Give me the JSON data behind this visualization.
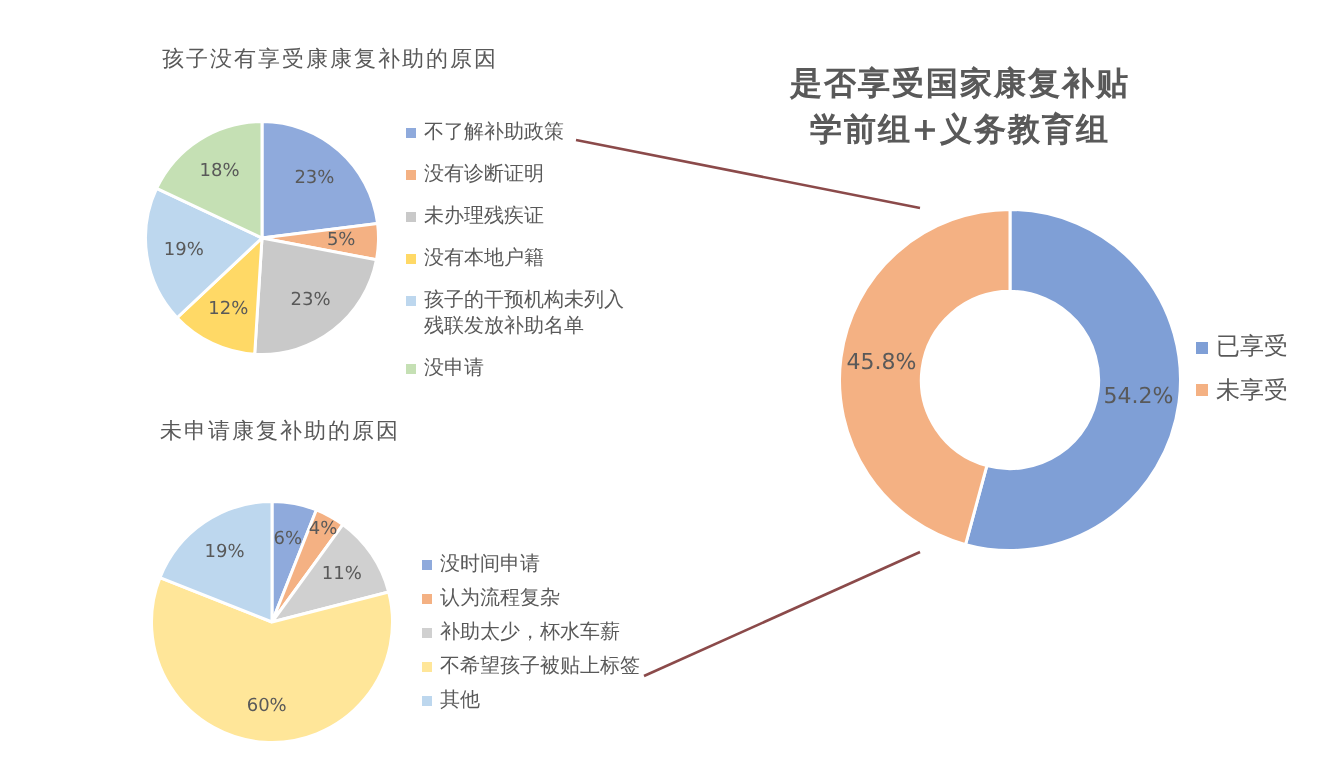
{
  "chart_data": [
    {
      "type": "pie",
      "title": "孩子没有享受康康复补助的原因",
      "categories": [
        "不了解补助政策",
        "没有诊断证明",
        "未办理残疾证",
        "没有本地户籍",
        "孩子的干预机构未列入残联发放补助名单",
        "没申请"
      ],
      "values": [
        23,
        5,
        23,
        12,
        19,
        18
      ],
      "value_labels": [
        "23%",
        "5%",
        "23%",
        "12%",
        "19%",
        "18%"
      ],
      "colors": [
        "#8faadc",
        "#f4b183",
        "#c9c9c9",
        "#ffd966",
        "#bdd7ee",
        "#c5e0b4"
      ],
      "legend": "right"
    },
    {
      "type": "donut",
      "title": "是否享受国家康复补贴",
      "subtitle": "学前组+义务教育组",
      "categories": [
        "已享受",
        "未享受"
      ],
      "values": [
        54.2,
        45.8
      ],
      "value_labels": [
        "54.2%",
        "45.8%"
      ],
      "colors": [
        "#7f9fd6",
        "#f4b183"
      ],
      "legend": "right"
    },
    {
      "type": "pie",
      "title": "未申请康复补助的原因",
      "categories": [
        "没时间申请",
        "认为流程复杂",
        "补助太少，杯水车薪",
        "不希望孩子被贴上标签",
        "其他"
      ],
      "values": [
        6,
        4,
        11,
        60,
        19
      ],
      "value_labels": [
        "6%",
        "4%",
        "11%",
        "60%",
        "19%"
      ],
      "colors": [
        "#8faadc",
        "#f4b183",
        "#d0d0d0",
        "#ffe699",
        "#bdd7ee"
      ],
      "legend": "right"
    }
  ]
}
